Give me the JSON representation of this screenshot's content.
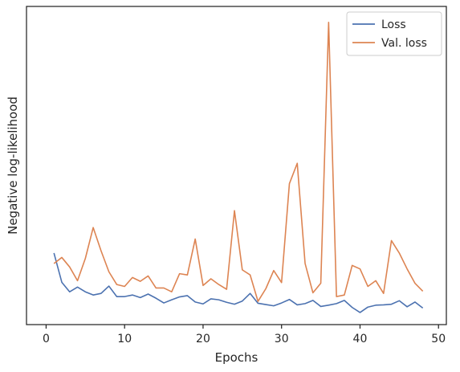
{
  "chart_data": {
    "type": "line",
    "xlabel": "Epochs",
    "ylabel": "Negative log-likelihood",
    "xlim": [
      -2.5,
      51
    ],
    "ylim": [
      0,
      100
    ],
    "x_ticks": [
      0,
      10,
      20,
      30,
      40,
      50
    ],
    "y_ticks_visible": false,
    "grid": false,
    "legend_position": "top-right",
    "x": [
      1,
      2,
      3,
      4,
      5,
      6,
      7,
      8,
      9,
      10,
      11,
      12,
      13,
      14,
      15,
      16,
      17,
      18,
      19,
      20,
      21,
      22,
      23,
      24,
      25,
      26,
      27,
      28,
      29,
      30,
      31,
      32,
      33,
      34,
      35,
      36,
      37,
      38,
      39,
      40,
      41,
      42,
      43,
      44,
      45,
      46,
      47,
      48
    ],
    "series": [
      {
        "name": "Loss",
        "color": "#4c72b0",
        "values": [
          22.5,
          13.3,
          10.3,
          11.8,
          10.3,
          9.3,
          9.8,
          12.1,
          8.8,
          8.8,
          9.3,
          8.5,
          9.6,
          8.3,
          6.8,
          7.8,
          8.7,
          9.1,
          7.1,
          6.5,
          8.1,
          7.8,
          7.0,
          6.4,
          7.4,
          9.8,
          6.7,
          6.3,
          5.9,
          6.8,
          7.9,
          6.2,
          6.6,
          7.6,
          5.7,
          6.1,
          6.6,
          7.6,
          5.4,
          3.8,
          5.5,
          6.1,
          6.2,
          6.4,
          7.5,
          5.6,
          7.1,
          5.2
        ]
      },
      {
        "name": "Val. loss",
        "color": "#dd8452",
        "values": [
          19.2,
          21.1,
          18.1,
          13.8,
          20.8,
          30.5,
          23.2,
          16.6,
          12.6,
          12.0,
          14.8,
          13.6,
          15.3,
          11.5,
          11.5,
          10.3,
          16.0,
          15.6,
          26.9,
          12.3,
          14.4,
          12.6,
          11.1,
          35.8,
          17.2,
          15.6,
          7.3,
          11.3,
          17.0,
          13.2,
          44.3,
          50.7,
          19.2,
          10.0,
          13.0,
          95.0,
          8.8,
          9.3,
          18.6,
          17.5,
          12.0,
          13.8,
          9.8,
          26.4,
          22.5,
          17.5,
          13.0,
          10.5
        ]
      }
    ]
  }
}
